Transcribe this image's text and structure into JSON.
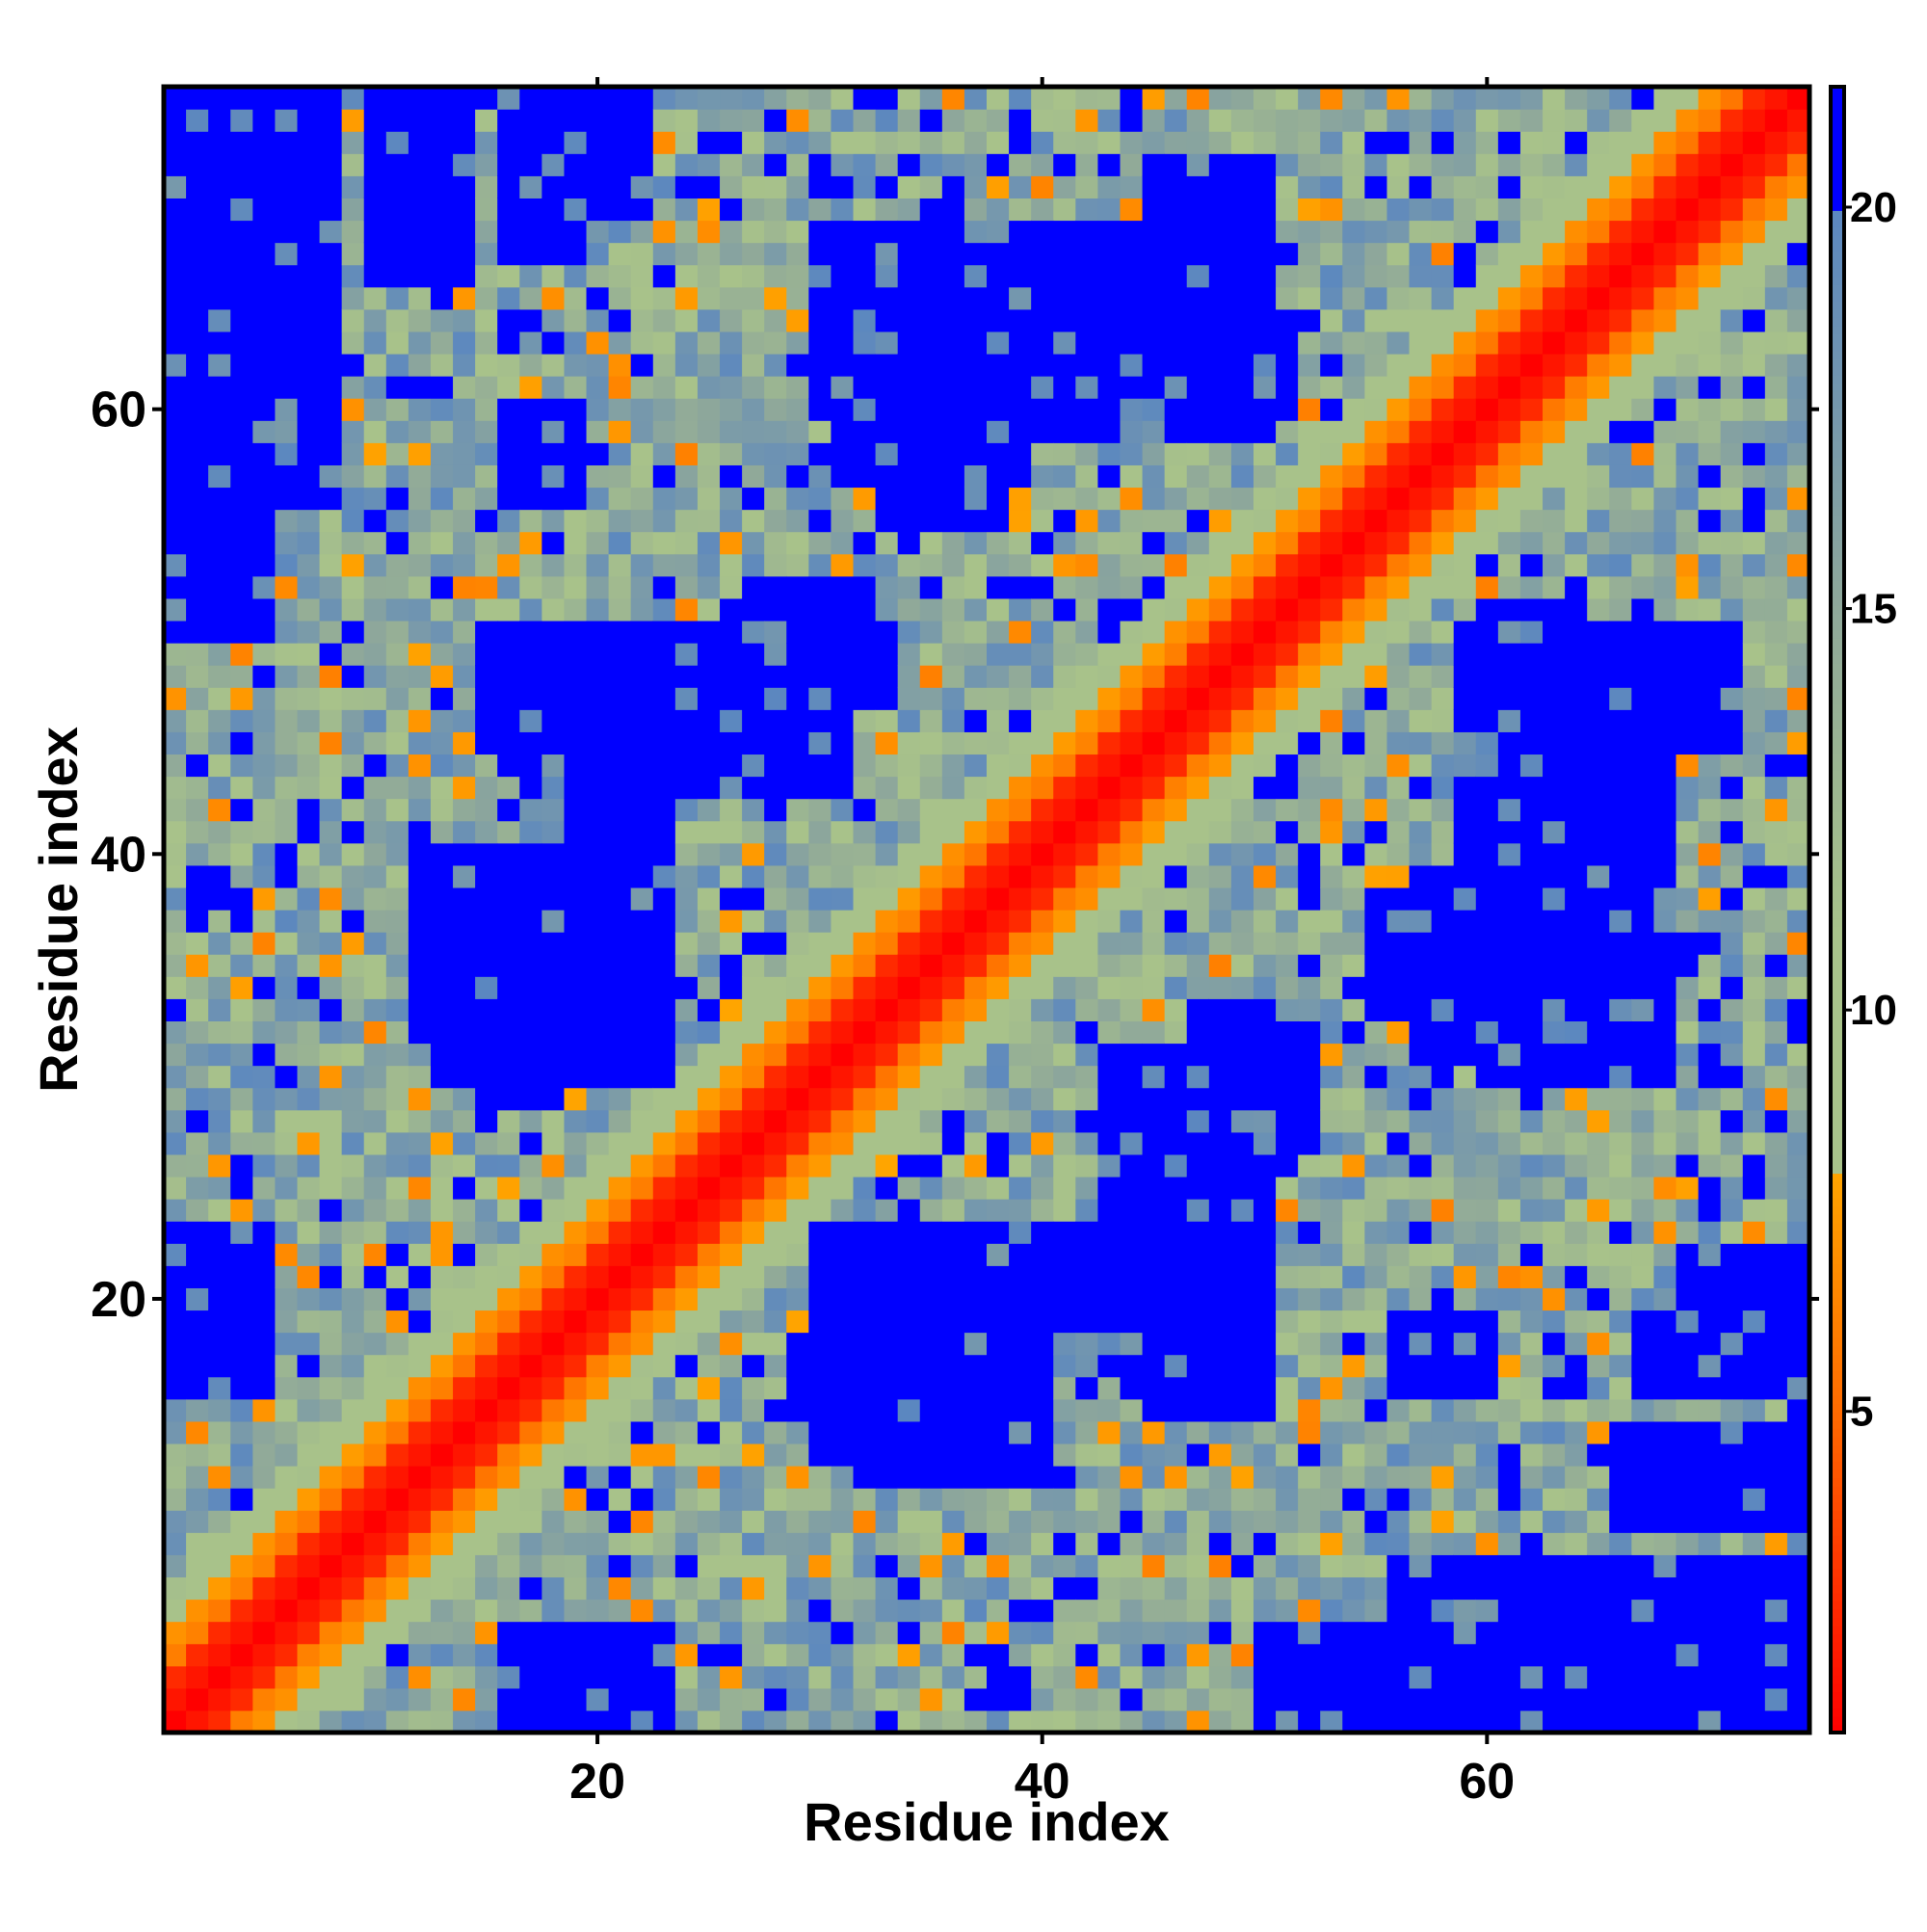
{
  "chart_data": {
    "type": "heatmap",
    "title": "",
    "xlabel": "Residue index",
    "ylabel": "Residue index",
    "n_residues": 74,
    "xlim": [
      1,
      74
    ],
    "ylim": [
      1,
      74
    ],
    "x_ticks": [
      20,
      40,
      60
    ],
    "y_ticks": [
      20,
      40,
      60
    ],
    "colorbar": {
      "range": [
        1,
        21.5
      ],
      "ticks": [
        5,
        10,
        15,
        20
      ],
      "placement": "right",
      "stops": [
        {
          "value": 1,
          "color": "#ff0000"
        },
        {
          "value": 5,
          "color": "#ff6a00"
        },
        {
          "value": 8,
          "color": "#ffa500"
        },
        {
          "value": 8.0001,
          "color": "#a8c28a"
        },
        {
          "value": 11,
          "color": "#a8c28a"
        },
        {
          "value": 15,
          "color": "#8fa89a"
        },
        {
          "value": 20,
          "color": "#5b87c0"
        },
        {
          "value": 20.0001,
          "color": "#0000ff"
        },
        {
          "value": 21.5,
          "color": "#0000ff"
        }
      ]
    },
    "diagonal_band": {
      "red_max_offset": 2,
      "orange_max_offset": 4
    },
    "far_value": 21,
    "blue_regions": [
      {
        "x": [
          1,
          8
        ],
        "y": [
          56,
          74
        ]
      },
      {
        "x": [
          1,
          5
        ],
        "y": [
          50,
          56
        ]
      },
      {
        "x": [
          1,
          5
        ],
        "y": [
          17,
          23
        ]
      },
      {
        "x": [
          16,
          23
        ],
        "y": [
          1,
          5
        ]
      },
      {
        "x": [
          54,
          67
        ],
        "y": [
          1,
          5
        ]
      },
      {
        "x": [
          61,
          74
        ],
        "y": [
          1,
          4
        ]
      },
      {
        "x": [
          30,
          45
        ],
        "y": [
          60,
          68
        ]
      },
      {
        "x": [
          33,
          38
        ],
        "y": [
          55,
          60
        ]
      },
      {
        "x": [
          45,
          50
        ],
        "y": [
          63,
          71
        ]
      },
      {
        "x": [
          16,
          21
        ],
        "y": [
          69,
          74
        ]
      },
      {
        "x": [
          12,
          17
        ],
        "y": [
          31,
          40
        ]
      },
      {
        "x": [
          17,
          23
        ],
        "y": [
          33,
          40
        ]
      },
      {
        "x": [
          17,
          27
        ],
        "y": [
          43,
          50
        ]
      },
      {
        "x": [
          27,
          33
        ],
        "y": [
          47,
          52
        ]
      },
      {
        "x": [
          30,
          35
        ],
        "y": [
          13,
          23
        ]
      },
      {
        "x": [
          29,
          37
        ],
        "y": [
          15,
          18
        ]
      },
      {
        "x": [
          37,
          43
        ],
        "y": [
          17,
          23
        ]
      },
      {
        "x": [
          45,
          50
        ],
        "y": [
          15,
          23
        ]
      },
      {
        "x": [
          43,
          50
        ],
        "y": [
          26,
          31
        ]
      },
      {
        "x": [
          57,
          63
        ],
        "y": [
          31,
          39
        ]
      },
      {
        "x": [
          59,
          66
        ],
        "y": [
          38,
          50
        ]
      },
      {
        "x": [
          60,
          64
        ],
        "y": [
          48,
          51
        ]
      },
      {
        "x": [
          56,
          60
        ],
        "y": [
          16,
          19
        ]
      },
      {
        "x": [
          67,
          71
        ],
        "y": [
          16,
          19
        ]
      },
      {
        "x": [
          66,
          74
        ],
        "y": [
          10,
          14
        ]
      },
      {
        "x": [
          71,
          74
        ],
        "y": [
          17,
          22
        ]
      }
    ],
    "heatmap_values": "Pairwise residue distance matrix; diagonal band of small values (red/orange) from (1,1) to (74,74), off-diagonal values mostly 9-20 (green/grey-blue) with blue patches > 20"
  }
}
